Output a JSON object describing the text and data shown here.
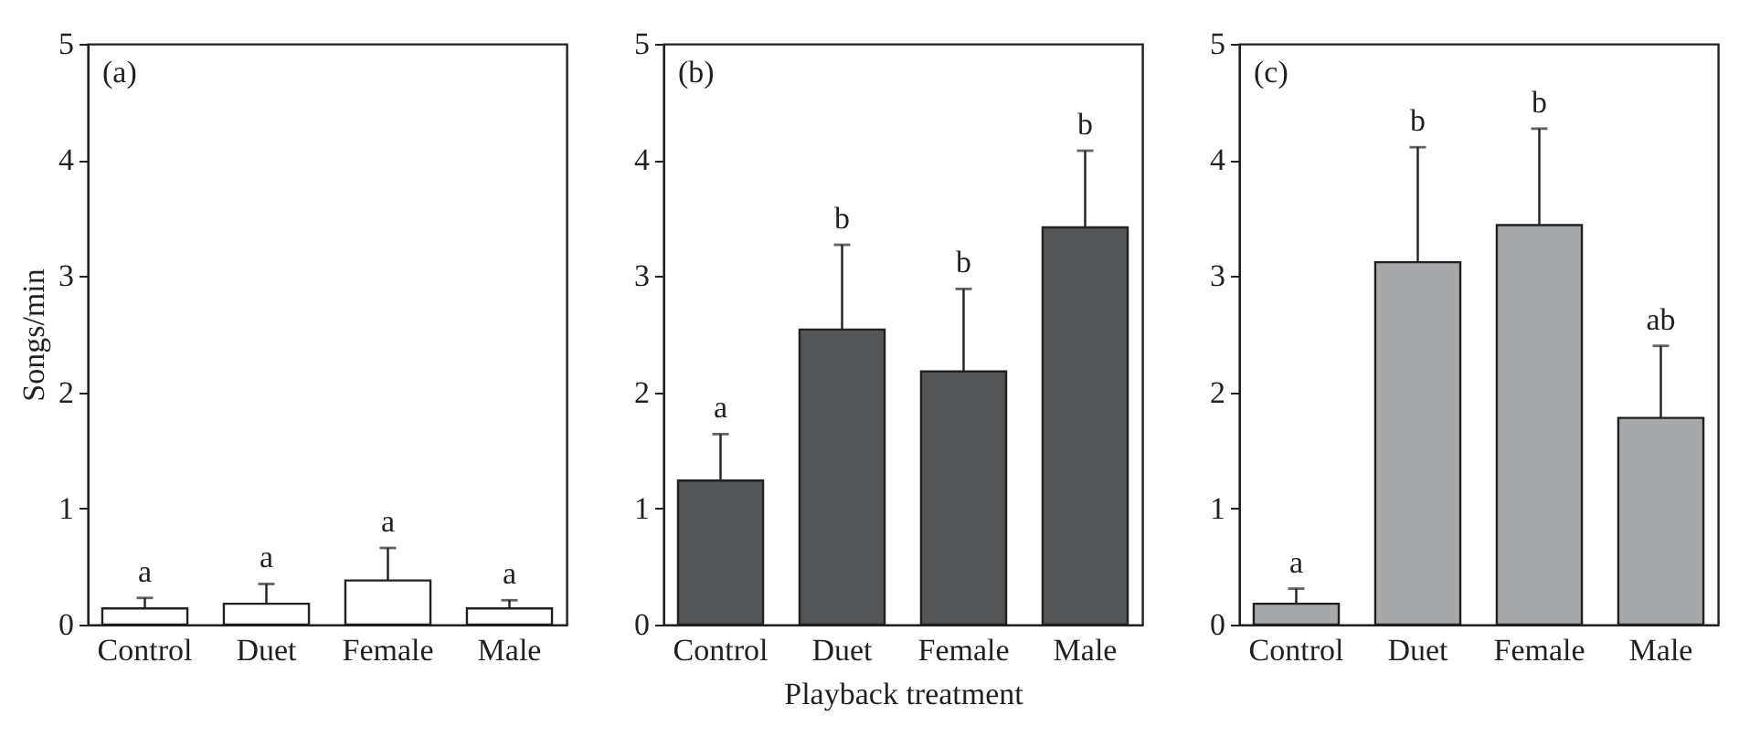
{
  "chart_data": [
    {
      "type": "bar",
      "categories": [
        "Control",
        "Duet",
        "Female",
        "Male"
      ],
      "ylabel": "Songs/min",
      "ylim": [
        0,
        5
      ],
      "yticks": [
        0,
        1,
        2,
        3,
        4,
        5
      ],
      "series": [
        {
          "color": "#ffffff",
          "values": [
            0.14,
            0.18,
            0.38,
            0.14
          ],
          "errors": [
            [
              0.14,
              0.23
            ],
            [
              0.18,
              0.35
            ],
            [
              0.38,
              0.66
            ],
            [
              0.14,
              0.21
            ]
          ]
        }
      ],
      "annotations": [
        "(a)",
        {
          "text": "a",
          "x": "Control",
          "y": 0.23
        },
        {
          "text": "a",
          "x": "Duet",
          "y": 0.35
        },
        {
          "text": "a",
          "x": "Female",
          "y": 0.66
        },
        {
          "text": "a",
          "x": "Male",
          "y": 0.21
        }
      ]
    },
    {
      "type": "bar",
      "categories": [
        "Control",
        "Duet",
        "Female",
        "Male"
      ],
      "xlabel": "Playback treatment",
      "ylim": [
        0,
        5
      ],
      "yticks": [
        0,
        1,
        2,
        3,
        4,
        5
      ],
      "series": [
        {
          "color": "#545556",
          "values": [
            1.24,
            2.54,
            2.18,
            3.42
          ],
          "errors": [
            [
              1.24,
              1.64
            ],
            [
              2.54,
              3.27
            ],
            [
              2.18,
              2.89
            ],
            [
              3.42,
              4.08
            ]
          ]
        }
      ],
      "annotations": [
        "(b)",
        {
          "text": "a",
          "x": "Control",
          "y": 1.64
        },
        {
          "text": "b",
          "x": "Duet",
          "y": 3.27
        },
        {
          "text": "b",
          "x": "Female",
          "y": 2.89
        },
        {
          "text": "b",
          "x": "Male",
          "y": 4.08
        }
      ]
    },
    {
      "type": "bar",
      "categories": [
        "Control",
        "Duet",
        "Female",
        "Male"
      ],
      "ylim": [
        0,
        5
      ],
      "yticks": [
        0,
        1,
        2,
        3,
        4,
        5
      ],
      "series": [
        {
          "color": "#a7a8aa",
          "values": [
            0.18,
            3.12,
            3.44,
            1.78
          ],
          "errors": [
            [
              0.18,
              0.31
            ],
            [
              3.12,
              4.11
            ],
            [
              3.44,
              4.27
            ],
            [
              1.78,
              2.4
            ]
          ]
        }
      ],
      "annotations": [
        "(c)",
        {
          "text": "a",
          "x": "Control",
          "y": 0.31
        },
        {
          "text": "b",
          "x": "Duet",
          "y": 4.11
        },
        {
          "text": "b",
          "x": "Female",
          "y": 4.27
        },
        {
          "text": "ab",
          "x": "Male",
          "y": 2.4
        }
      ]
    }
  ]
}
